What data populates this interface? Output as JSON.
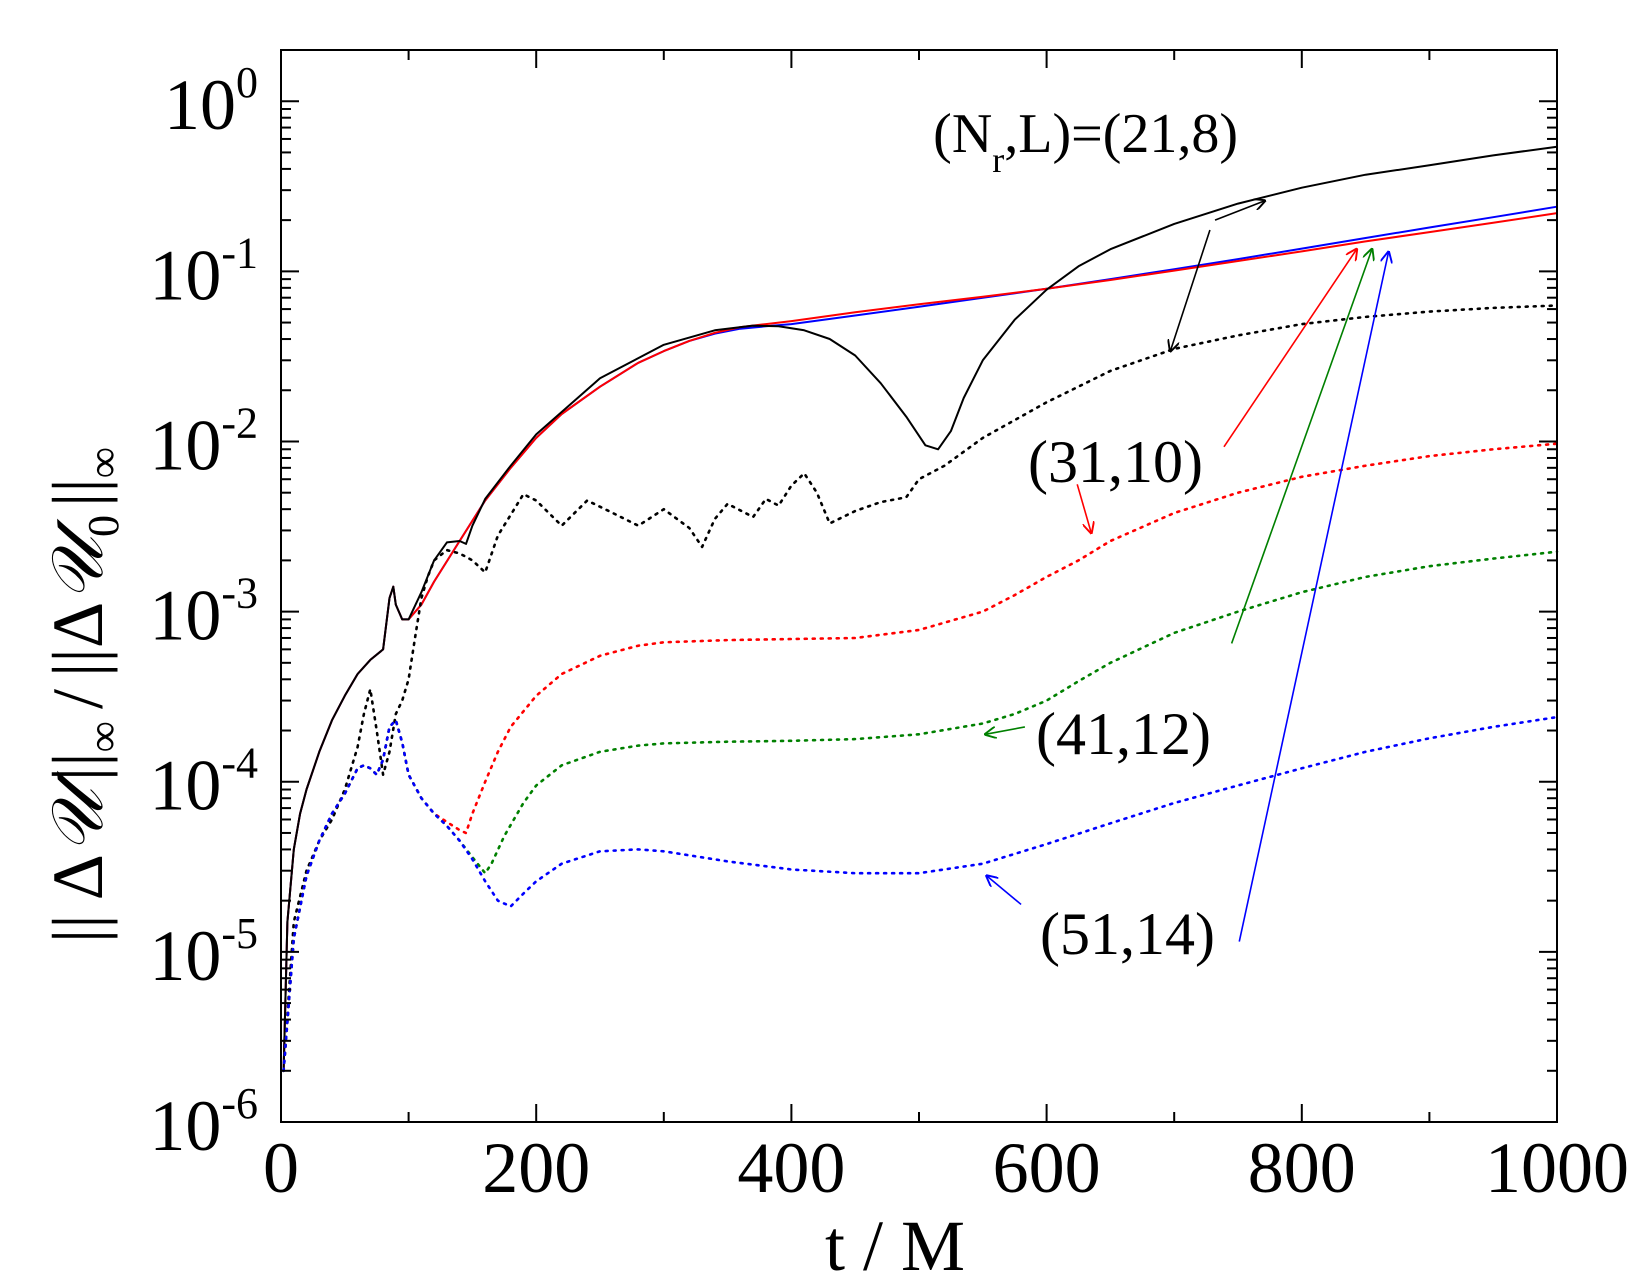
{
  "chart_data": {
    "type": "line",
    "xlabel": "t / M",
    "ylabel": "|| Δ𝒰 ||∞ / ||Δ𝒰₀||∞",
    "ylabel_parts": {
      "bars": "||",
      "delta": "Δ",
      "u": "𝒰",
      "inf_sub": "∞",
      "slash": "/",
      "zero_sub": "0"
    },
    "xlim": [
      0,
      1000
    ],
    "ylim": [
      1e-06,
      2
    ],
    "yscale": "log",
    "grid": false,
    "xticks": [
      {
        "value": 0,
        "label": "0"
      },
      {
        "value": 200,
        "label": "200"
      },
      {
        "value": 400,
        "label": "400"
      },
      {
        "value": 600,
        "label": "600"
      },
      {
        "value": 800,
        "label": "800"
      },
      {
        "value": 1000,
        "label": "1000"
      }
    ],
    "yticks": [
      {
        "value": 1e-06,
        "base": "10",
        "exp": "-6"
      },
      {
        "value": 1e-05,
        "base": "10",
        "exp": "-5"
      },
      {
        "value": 0.0001,
        "base": "10",
        "exp": "-4"
      },
      {
        "value": 0.001,
        "base": "10",
        "exp": "-3"
      },
      {
        "value": 0.01,
        "base": "10",
        "exp": "-2"
      },
      {
        "value": 0.1,
        "base": "10",
        "exp": "-1"
      },
      {
        "value": 1,
        "base": "10",
        "exp": "0"
      }
    ],
    "annotations": [
      {
        "parts": [
          "(N",
          "r",
          ",L)=(21,8)"
        ],
        "color": "#000000"
      },
      {
        "text": "(31,10)",
        "color": "#ff0000"
      },
      {
        "text": "(41,12)",
        "color": "#008000"
      },
      {
        "text": "(51,14)",
        "color": "#0000ff"
      }
    ],
    "series": [
      {
        "color": "#0000ff",
        "style": "solid",
        "x": [
          2,
          5,
          10,
          15,
          20,
          30,
          40,
          50,
          60,
          70,
          80,
          85,
          88,
          90,
          95,
          100,
          110,
          120,
          140,
          160,
          180,
          200,
          220,
          250,
          280,
          300,
          320,
          340,
          360,
          380,
          400,
          450,
          500,
          550,
          600,
          650,
          700,
          750,
          800,
          850,
          900,
          950,
          1000
        ],
        "y": [
          2e-06,
          1.5e-05,
          4e-05,
          6.5e-05,
          9e-05,
          0.00015,
          0.00023,
          0.00032,
          0.00043,
          0.00052,
          0.0006,
          0.0012,
          0.0014,
          0.0011,
          0.0009,
          0.0009,
          0.0011,
          0.0015,
          0.0026,
          0.0045,
          0.007,
          0.0105,
          0.0145,
          0.021,
          0.029,
          0.034,
          0.039,
          0.043,
          0.046,
          0.0475,
          0.049,
          0.055,
          0.062,
          0.07,
          0.079,
          0.09,
          0.103,
          0.118,
          0.136,
          0.157,
          0.181,
          0.208,
          0.24
        ]
      },
      {
        "color": "#ff0000",
        "style": "solid",
        "x": [
          2,
          5,
          10,
          15,
          20,
          30,
          40,
          50,
          60,
          70,
          80,
          85,
          88,
          90,
          95,
          100,
          110,
          120,
          140,
          160,
          180,
          200,
          220,
          250,
          280,
          300,
          320,
          340,
          360,
          380,
          400,
          450,
          500,
          550,
          600,
          650,
          700,
          750,
          800,
          850,
          900,
          950,
          1000
        ],
        "y": [
          2e-06,
          1.5e-05,
          4e-05,
          6.5e-05,
          9e-05,
          0.00015,
          0.00023,
          0.00032,
          0.00043,
          0.00052,
          0.0006,
          0.0012,
          0.0014,
          0.0011,
          0.0009,
          0.0009,
          0.0011,
          0.0015,
          0.0026,
          0.0045,
          0.007,
          0.0105,
          0.0145,
          0.021,
          0.029,
          0.034,
          0.039,
          0.0435,
          0.047,
          0.049,
          0.051,
          0.0575,
          0.064,
          0.071,
          0.079,
          0.089,
          0.101,
          0.115,
          0.131,
          0.15,
          0.17,
          0.193,
          0.22
        ]
      },
      {
        "color": "#000000",
        "style": "solid",
        "x": [
          2,
          5,
          10,
          15,
          20,
          30,
          40,
          50,
          60,
          70,
          80,
          85,
          88,
          90,
          95,
          100,
          110,
          120,
          130,
          140,
          145,
          150,
          160,
          180,
          200,
          250,
          300,
          340,
          370,
          390,
          410,
          430,
          450,
          470,
          490,
          505,
          515,
          525,
          535,
          550,
          575,
          600,
          625,
          650,
          700,
          750,
          800,
          850,
          900,
          950,
          1000
        ],
        "y": [
          2e-06,
          1.5e-05,
          4e-05,
          6.5e-05,
          9e-05,
          0.00015,
          0.00023,
          0.00032,
          0.00043,
          0.00052,
          0.0006,
          0.0012,
          0.0014,
          0.0011,
          0.0009,
          0.0009,
          0.0013,
          0.002,
          0.00255,
          0.0026,
          0.0025,
          0.0032,
          0.0046,
          0.0072,
          0.011,
          0.0235,
          0.037,
          0.045,
          0.048,
          0.0475,
          0.045,
          0.04,
          0.032,
          0.022,
          0.014,
          0.0095,
          0.009,
          0.0115,
          0.018,
          0.03,
          0.052,
          0.078,
          0.107,
          0.135,
          0.19,
          0.25,
          0.31,
          0.37,
          0.42,
          0.48,
          0.54
        ]
      },
      {
        "color": "#000000",
        "style": "dotted",
        "x": [
          2,
          10,
          20,
          30,
          40,
          50,
          55,
          60,
          65,
          70,
          75,
          80,
          85,
          90,
          95,
          100,
          105,
          110,
          115,
          120,
          130,
          140,
          150,
          160,
          170,
          180,
          190,
          200,
          220,
          240,
          260,
          280,
          300,
          320,
          330,
          340,
          350,
          370,
          380,
          390,
          400,
          410,
          420,
          430,
          450,
          470,
          490,
          500,
          520,
          550,
          600,
          650,
          700,
          750,
          800,
          850,
          900,
          950,
          1000
        ],
        "y": [
          2e-06,
          1.5e-05,
          3e-05,
          4.5e-05,
          6e-05,
          9e-05,
          0.00012,
          0.00016,
          0.00025,
          0.00035,
          0.0002,
          0.00011,
          0.00015,
          0.00025,
          0.0003,
          0.0004,
          0.0007,
          0.0012,
          0.0016,
          0.002,
          0.0023,
          0.0022,
          0.002,
          0.0017,
          0.0028,
          0.0037,
          0.0049,
          0.0045,
          0.0032,
          0.0045,
          0.0038,
          0.0032,
          0.004,
          0.0031,
          0.0024,
          0.0035,
          0.0043,
          0.0036,
          0.0046,
          0.0042,
          0.0055,
          0.0065,
          0.005,
          0.0033,
          0.0039,
          0.0044,
          0.0047,
          0.006,
          0.0072,
          0.0105,
          0.017,
          0.026,
          0.035,
          0.042,
          0.049,
          0.054,
          0.058,
          0.061,
          0.063
        ]
      },
      {
        "color": "#ff0000",
        "style": "dotted",
        "x": [
          2,
          10,
          20,
          30,
          40,
          50,
          60,
          65,
          70,
          75,
          80,
          85,
          90,
          95,
          100,
          110,
          120,
          130,
          140,
          145,
          150,
          160,
          170,
          180,
          200,
          220,
          250,
          280,
          300,
          350,
          400,
          450,
          500,
          550,
          575,
          600,
          625,
          650,
          700,
          750,
          800,
          850,
          900,
          950,
          1000
        ],
        "y": [
          2e-06,
          1.2e-05,
          2.8e-05,
          4.5e-05,
          6.5e-05,
          8.5e-05,
          0.00012,
          0.000125,
          0.00012,
          0.00011,
          0.000135,
          0.00021,
          0.00023,
          0.00017,
          0.00011,
          8e-05,
          6.5e-05,
          5.8e-05,
          5.2e-05,
          5e-05,
          6.5e-05,
          0.0001,
          0.00015,
          0.00021,
          0.00032,
          0.00043,
          0.00055,
          0.00063,
          0.00066,
          0.00068,
          0.00069,
          0.0007,
          0.00078,
          0.001,
          0.00125,
          0.0016,
          0.002,
          0.0026,
          0.0038,
          0.005,
          0.0062,
          0.0072,
          0.0082,
          0.009,
          0.0097
        ]
      },
      {
        "color": "#008000",
        "style": "dotted",
        "x": [
          2,
          10,
          20,
          30,
          40,
          50,
          60,
          65,
          70,
          75,
          80,
          85,
          90,
          95,
          100,
          110,
          120,
          130,
          140,
          150,
          160,
          165,
          175,
          190,
          200,
          220,
          250,
          280,
          300,
          350,
          400,
          450,
          500,
          550,
          575,
          600,
          625,
          650,
          700,
          750,
          800,
          850,
          900,
          950,
          1000
        ],
        "y": [
          2e-06,
          1.2e-05,
          2.8e-05,
          4.5e-05,
          6.5e-05,
          8.5e-05,
          0.00012,
          0.000125,
          0.00012,
          0.00011,
          0.000135,
          0.00021,
          0.00023,
          0.00017,
          0.00011,
          8e-05,
          6.5e-05,
          5.5e-05,
          4.5e-05,
          3.6e-05,
          2.9e-05,
          3.3e-05,
          4.8e-05,
          7.5e-05,
          9.5e-05,
          0.000125,
          0.00015,
          0.000163,
          0.000168,
          0.000172,
          0.000174,
          0.000178,
          0.00019,
          0.00022,
          0.00025,
          0.0003,
          0.00039,
          0.0005,
          0.00075,
          0.001,
          0.0013,
          0.0016,
          0.00185,
          0.00205,
          0.00225
        ]
      },
      {
        "color": "#0000ff",
        "style": "dotted",
        "x": [
          2,
          10,
          20,
          30,
          40,
          50,
          60,
          65,
          70,
          75,
          80,
          85,
          90,
          95,
          100,
          110,
          120,
          130,
          140,
          150,
          160,
          170,
          180,
          190,
          200,
          220,
          250,
          280,
          300,
          350,
          400,
          450,
          500,
          550,
          600,
          650,
          700,
          750,
          800,
          850,
          900,
          950,
          1000
        ],
        "y": [
          2e-06,
          1.2e-05,
          2.8e-05,
          4.5e-05,
          6.5e-05,
          8.5e-05,
          0.00012,
          0.000125,
          0.00012,
          0.00011,
          0.000135,
          0.00021,
          0.00023,
          0.00017,
          0.00011,
          8e-05,
          6.5e-05,
          5.5e-05,
          4.5e-05,
          3.5e-05,
          2.6e-05,
          2e-05,
          1.85e-05,
          2.2e-05,
          2.6e-05,
          3.3e-05,
          3.9e-05,
          4e-05,
          3.9e-05,
          3.4e-05,
          3.05e-05,
          2.9e-05,
          2.9e-05,
          3.3e-05,
          4.3e-05,
          5.7e-05,
          7.5e-05,
          9.5e-05,
          0.00012,
          0.00015,
          0.00018,
          0.00021,
          0.00024
        ]
      }
    ],
    "arrows": [
      {
        "color": "#000000",
        "from": [
          732,
          0.2
        ],
        "to": [
          771,
          0.26
        ]
      },
      {
        "color": "#000000",
        "from": [
          728,
          0.175
        ],
        "to": [
          697,
          0.034
        ]
      },
      {
        "color": "#ff0000",
        "from": [
          624,
          0.0056
        ],
        "to": [
          635,
          0.0029
        ]
      },
      {
        "color": "#008000",
        "from": [
          583,
          0.00021
        ],
        "to": [
          552,
          0.00019
        ]
      },
      {
        "color": "#0000ff",
        "from": [
          580,
          1.9e-05
        ],
        "to": [
          553,
          2.8e-05
        ]
      },
      {
        "color": "#ff0000",
        "from": [
          739,
          0.0093
        ],
        "to": [
          843,
          0.135
        ]
      },
      {
        "color": "#008000",
        "from": [
          745,
          0.00065
        ],
        "to": [
          855,
          0.135
        ]
      },
      {
        "color": "#0000ff",
        "from": [
          751,
          1.15e-05
        ],
        "to": [
          868,
          0.13
        ]
      }
    ]
  }
}
